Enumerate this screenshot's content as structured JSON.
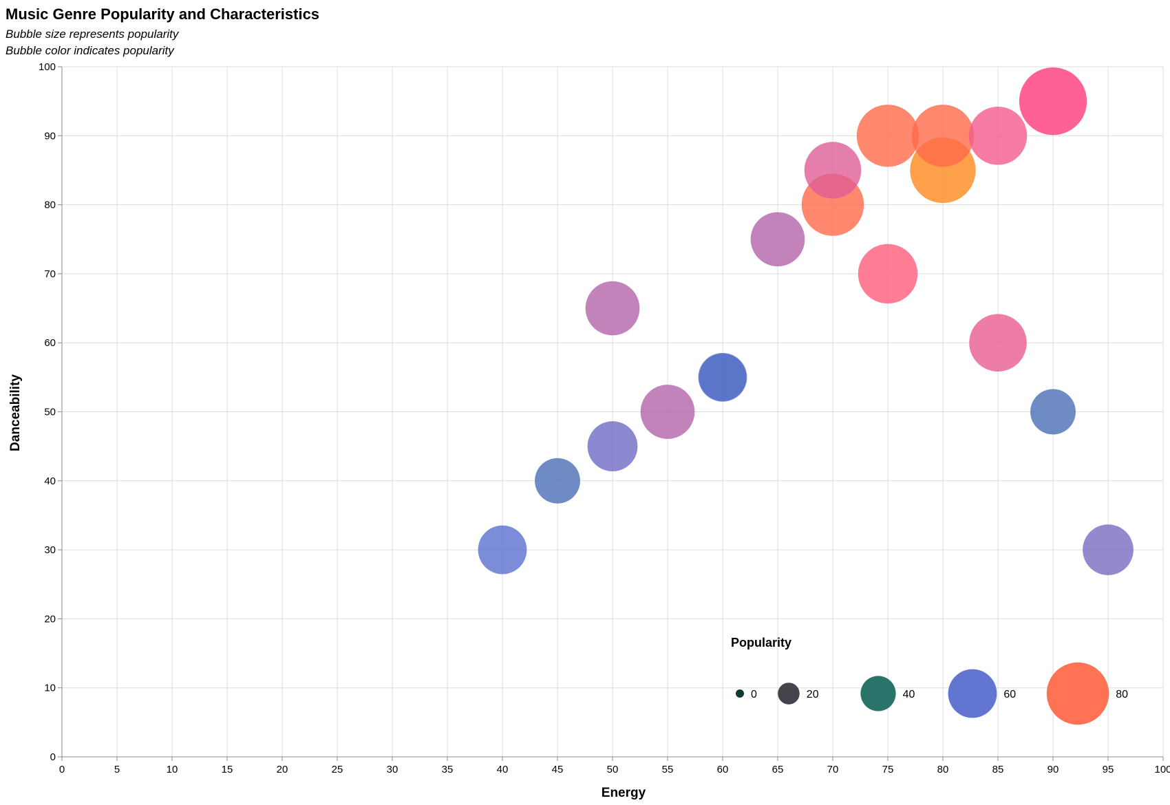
{
  "chart_data": {
    "type": "scatter",
    "title": "Music Genre Popularity and Characteristics",
    "subtitle": [
      "Bubble size represents popularity",
      "Bubble color indicates popularity"
    ],
    "xlabel": "Energy",
    "ylabel": "Danceability",
    "xlim": [
      0,
      100
    ],
    "ylim": [
      0,
      100
    ],
    "x_ticks": [
      0,
      5,
      10,
      15,
      20,
      25,
      30,
      35,
      40,
      45,
      50,
      55,
      60,
      65,
      70,
      75,
      80,
      85,
      90,
      95,
      100
    ],
    "y_ticks": [
      0,
      10,
      20,
      30,
      40,
      50,
      60,
      70,
      80,
      90,
      100
    ],
    "grid": true,
    "size_encoding": "popularity",
    "color_encoding": "popularity",
    "color_scale": [
      {
        "value": 0,
        "color": "#00302b"
      },
      {
        "value": 20,
        "color": "#3a3a42"
      },
      {
        "value": 40,
        "color": "#1f6b63"
      },
      {
        "value": 60,
        "color": "#5a6fcf"
      },
      {
        "value": 75,
        "color": "#ff5a87"
      },
      {
        "value": 80,
        "color": "#ff6a4a"
      },
      {
        "value": 85,
        "color": "#ff8a1e"
      },
      {
        "value": 88,
        "color": "#ff3a7a"
      }
    ],
    "points": [
      {
        "energy": 40,
        "danceability": 30,
        "popularity": 60
      },
      {
        "energy": 45,
        "danceability": 40,
        "popularity": 55
      },
      {
        "energy": 50,
        "danceability": 45,
        "popularity": 62
      },
      {
        "energy": 50,
        "danceability": 65,
        "popularity": 68
      },
      {
        "energy": 55,
        "danceability": 50,
        "popularity": 68
      },
      {
        "energy": 60,
        "danceability": 55,
        "popularity": 58
      },
      {
        "energy": 60,
        "danceability": 55,
        "popularity": 60
      },
      {
        "energy": 65,
        "danceability": 75,
        "popularity": 68
      },
      {
        "energy": 70,
        "danceability": 85,
        "popularity": 72
      },
      {
        "energy": 70,
        "danceability": 80,
        "popularity": 80
      },
      {
        "energy": 75,
        "danceability": 90,
        "popularity": 80
      },
      {
        "energy": 75,
        "danceability": 70,
        "popularity": 76
      },
      {
        "energy": 80,
        "danceability": 85,
        "popularity": 85
      },
      {
        "energy": 80,
        "danceability": 90,
        "popularity": 80
      },
      {
        "energy": 85,
        "danceability": 90,
        "popularity": 74
      },
      {
        "energy": 85,
        "danceability": 60,
        "popularity": 73
      },
      {
        "energy": 90,
        "danceability": 95,
        "popularity": 88
      },
      {
        "energy": 90,
        "danceability": 50,
        "popularity": 55
      },
      {
        "energy": 95,
        "danceability": 30,
        "popularity": 63
      }
    ],
    "legend": {
      "title": "Popularity",
      "placement": "bottom-right",
      "entries": [
        {
          "value": 0,
          "label": "0"
        },
        {
          "value": 20,
          "label": "20"
        },
        {
          "value": 40,
          "label": "40"
        },
        {
          "value": 60,
          "label": "60"
        },
        {
          "value": 80,
          "label": "80"
        }
      ]
    }
  }
}
